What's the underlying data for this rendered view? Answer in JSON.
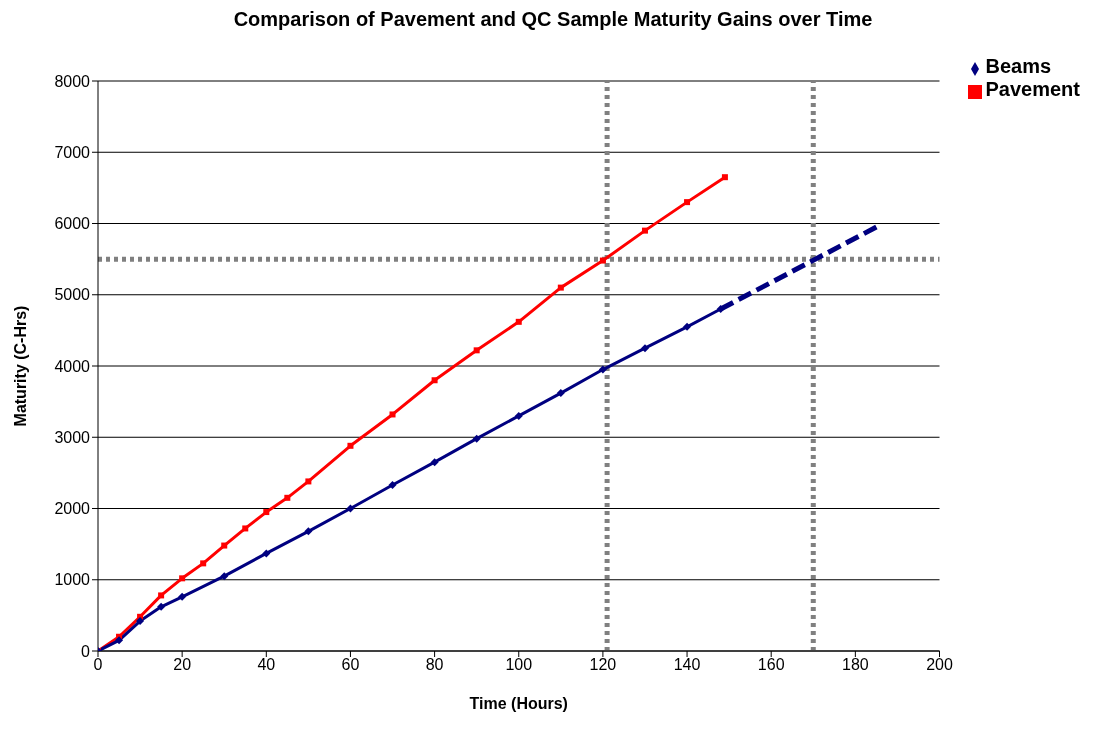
{
  "chart_data": {
    "type": "line",
    "title": "Comparison of Pavement and QC Sample Maturity Gains over Time",
    "xlabel": "Time (Hours)",
    "ylabel": "Maturity (C-Hrs)",
    "xlim": [
      0,
      200
    ],
    "xticks": [
      0,
      20,
      40,
      60,
      80,
      100,
      120,
      140,
      160,
      180,
      200
    ],
    "ylim": [
      0,
      8000
    ],
    "yticks": [
      0,
      1000,
      2000,
      3000,
      4000,
      5000,
      6000,
      7000,
      8000
    ],
    "grid": "y",
    "legend": "top right",
    "series": [
      {
        "name": "Beams",
        "color": "#000080",
        "marker": "diamond",
        "x": [
          0,
          5,
          10,
          15,
          20,
          30,
          40,
          50,
          60,
          70,
          80,
          90,
          100,
          110,
          120,
          130,
          140,
          148
        ],
        "values": [
          0,
          150,
          420,
          620,
          760,
          1050,
          1370,
          1680,
          2000,
          2330,
          2650,
          2980,
          3300,
          3620,
          3950,
          4250,
          4550,
          4800
        ]
      },
      {
        "name": "Pavement",
        "color": "#ff0000",
        "marker": "square",
        "x": [
          0,
          5,
          10,
          15,
          20,
          25,
          30,
          35,
          40,
          45,
          50,
          60,
          70,
          80,
          90,
          100,
          110,
          120,
          130,
          140,
          149
        ],
        "values": [
          0,
          200,
          480,
          780,
          1020,
          1230,
          1480,
          1720,
          1950,
          2150,
          2380,
          2880,
          3320,
          3800,
          4220,
          4620,
          5100,
          5480,
          5900,
          6300,
          6650
        ]
      },
      {
        "type": "line",
        "color": "#000080",
        "marker": "none",
        "line_style": "dashed",
        "x": [
          148,
          185
        ],
        "values": [
          4800,
          5950
        ]
      }
    ],
    "ref_lines": [
      {
        "axis": "y",
        "value": 5500,
        "color": "#808080",
        "line_style": "dotted"
      },
      {
        "axis": "x",
        "value": 121,
        "color": "#808080",
        "line_style": "dotted"
      },
      {
        "axis": "x",
        "value": 170,
        "color": "#808080",
        "line_style": "dotted"
      }
    ]
  }
}
